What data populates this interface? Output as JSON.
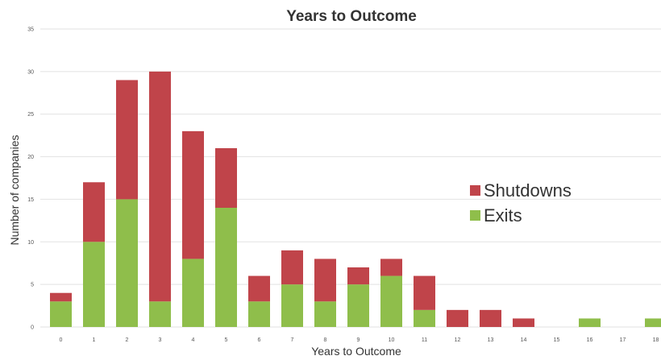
{
  "chart_data": {
    "type": "bar",
    "stacked": true,
    "title": "Years to Outcome",
    "xlabel": "Years to Outcome",
    "ylabel": "Number of companies",
    "ylim": [
      0,
      35
    ],
    "yticks": [
      "0",
      "5",
      "10",
      "15",
      "20",
      "25",
      "30",
      "35"
    ],
    "categories": [
      "0",
      "1",
      "2",
      "3",
      "4",
      "5",
      "6",
      "7",
      "8",
      "9",
      "10",
      "11",
      "12",
      "13",
      "14",
      "15",
      "16",
      "17",
      "18"
    ],
    "series": [
      {
        "name": "Exits",
        "color": "#8fbe4b",
        "values": [
          3,
          10,
          15,
          3,
          8,
          14,
          3,
          5,
          3,
          5,
          6,
          2,
          0,
          0,
          0,
          0,
          1,
          0,
          1
        ]
      },
      {
        "name": "Shutdowns",
        "color": "#c0444a",
        "values": [
          1,
          7,
          14,
          27,
          15,
          7,
          3,
          4,
          5,
          2,
          2,
          4,
          2,
          2,
          1,
          0,
          0,
          0,
          0
        ]
      }
    ],
    "legend": {
      "position": "right",
      "order": [
        "Shutdowns",
        "Exits"
      ]
    },
    "grid": true
  }
}
